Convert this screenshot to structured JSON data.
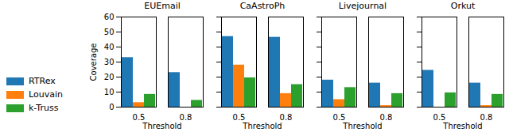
{
  "chart_data": [
    {
      "type": "bar",
      "title": "EUEmail",
      "xlabel": "Threshold",
      "ylabel": "Coverage",
      "categories": [
        "0.5",
        "0.8"
      ],
      "series": [
        {
          "name": "RTRex",
          "color": "#1f77b4",
          "values": [
            33,
            23
          ]
        },
        {
          "name": "Louvain",
          "color": "#ff7f0e",
          "values": [
            3,
            0
          ]
        },
        {
          "name": "k-Truss",
          "color": "#2ca02c",
          "values": [
            8.5,
            4.5
          ]
        }
      ],
      "ylim": [
        0,
        60
      ],
      "yticks": [
        0,
        10,
        20,
        30,
        40,
        50,
        60
      ],
      "grid": false,
      "legend": "lower left"
    },
    {
      "type": "bar",
      "title": "CaAstroPh",
      "xlabel": "Threshold",
      "categories": [
        "0.5",
        "0.8"
      ],
      "series": [
        {
          "name": "RTRex",
          "color": "#1f77b4",
          "values": [
            47,
            46.5
          ]
        },
        {
          "name": "Louvain",
          "color": "#ff7f0e",
          "values": [
            28,
            9
          ]
        },
        {
          "name": "k-Truss",
          "color": "#2ca02c",
          "values": [
            19.5,
            15
          ]
        }
      ],
      "ylim": [
        0,
        60
      ],
      "yticks": [
        0,
        10,
        20,
        30,
        40,
        50,
        60
      ],
      "grid": false,
      "tick_labels": "x"
    },
    {
      "type": "bar",
      "title": "Livejournal",
      "xlabel": "Threshold",
      "categories": [
        "0.5",
        "0.8"
      ],
      "series": [
        {
          "name": "RTRex",
          "color": "#1f77b4",
          "values": [
            18,
            16
          ]
        },
        {
          "name": "Louvain",
          "color": "#ff7f0e",
          "values": [
            5,
            1
          ]
        },
        {
          "name": "k-Truss",
          "color": "#2ca02c",
          "values": [
            13,
            9
          ]
        }
      ],
      "ylim": [
        0,
        60
      ],
      "yticks": [
        0,
        10,
        20,
        30,
        40,
        50,
        60
      ],
      "grid": false,
      "tick_labels": "x"
    },
    {
      "type": "bar",
      "title": "Orkut",
      "xlabel": "Threshold",
      "categories": [
        "0.5",
        "0.8"
      ],
      "series": [
        {
          "name": "RTRex",
          "color": "#1f77b4",
          "values": [
            24.5,
            16
          ]
        },
        {
          "name": "Louvain",
          "color": "#ff7f0e",
          "values": [
            0,
            1
          ]
        },
        {
          "name": "k-Truss",
          "color": "#2ca02c",
          "values": [
            9.5,
            8.5
          ]
        }
      ],
      "ylim": [
        0,
        60
      ],
      "yticks": [
        0,
        10,
        20,
        30,
        40,
        50,
        60
      ],
      "grid": false,
      "tick_labels": "x"
    }
  ]
}
